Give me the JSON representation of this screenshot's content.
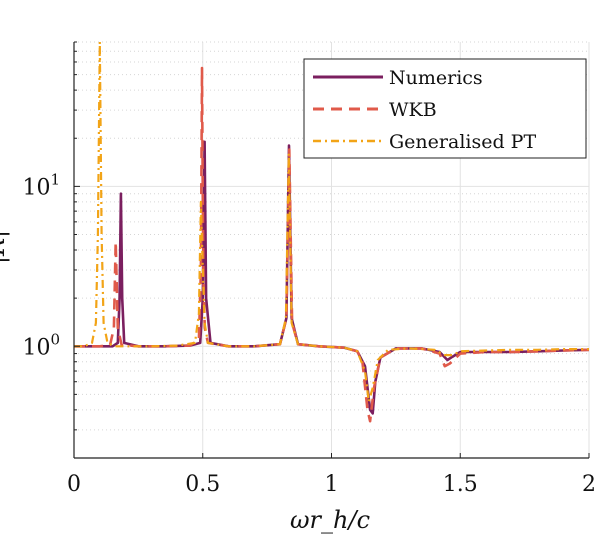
{
  "chart_data": {
    "type": "line",
    "title": "",
    "xlabel": "ωr_h/c",
    "ylabel": "|R|",
    "xscale": "linear",
    "yscale": "log",
    "xlim": [
      0,
      2
    ],
    "ylim": [
      0.2,
      80
    ],
    "grid": true,
    "legend_position": "top-right",
    "x_ticks": [
      {
        "value": 0,
        "label": "0"
      },
      {
        "value": 0.5,
        "label": "0.5"
      },
      {
        "value": 1,
        "label": "1"
      },
      {
        "value": 1.5,
        "label": "1.5"
      },
      {
        "value": 2,
        "label": "2"
      }
    ],
    "y_ticks": [
      {
        "value": 1,
        "base": "10",
        "exp": "0"
      },
      {
        "value": 10,
        "base": "10",
        "exp": "1"
      }
    ],
    "series": [
      {
        "name": "Numerics",
        "color": "#7b1f5f",
        "style": "solid",
        "x": [
          0.0,
          0.05,
          0.1,
          0.15,
          0.17,
          0.177,
          0.182,
          0.187,
          0.195,
          0.25,
          0.35,
          0.45,
          0.49,
          0.5,
          0.507,
          0.513,
          0.53,
          0.6,
          0.7,
          0.8,
          0.825,
          0.835,
          0.845,
          0.87,
          0.95,
          1.05,
          1.1,
          1.13,
          1.15,
          1.16,
          1.17,
          1.19,
          1.25,
          1.35,
          1.42,
          1.45,
          1.47,
          1.5,
          1.6,
          1.7,
          1.8,
          1.9,
          2.0
        ],
        "y": [
          1.0,
          1.0,
          1.0,
          1.0,
          1.05,
          2.0,
          9.0,
          2.0,
          1.05,
          1.0,
          1.0,
          1.01,
          1.05,
          2.0,
          19.0,
          2.0,
          1.05,
          1.0,
          1.0,
          1.03,
          1.5,
          18.0,
          1.5,
          1.03,
          1.0,
          0.98,
          0.93,
          0.75,
          0.4,
          0.38,
          0.6,
          0.85,
          0.97,
          0.97,
          0.92,
          0.82,
          0.86,
          0.92,
          0.92,
          0.92,
          0.93,
          0.94,
          0.95
        ]
      },
      {
        "name": "WKB",
        "color": "#e05a4a",
        "style": "dashed",
        "x": [
          0.0,
          0.05,
          0.1,
          0.14,
          0.155,
          0.162,
          0.17,
          0.185,
          0.25,
          0.35,
          0.45,
          0.485,
          0.493,
          0.497,
          0.5,
          0.503,
          0.508,
          0.52,
          0.6,
          0.7,
          0.8,
          0.825,
          0.836,
          0.847,
          0.87,
          0.95,
          1.05,
          1.1,
          1.12,
          1.14,
          1.15,
          1.165,
          1.19,
          1.25,
          1.35,
          1.42,
          1.44,
          1.46,
          1.5,
          1.6,
          1.7,
          1.8,
          1.9,
          2.0
        ],
        "y": [
          1.0,
          1.0,
          1.0,
          1.02,
          1.3,
          4.5,
          1.3,
          1.02,
          1.0,
          1.0,
          1.01,
          1.1,
          3.0,
          55.0,
          8.0,
          2.5,
          1.3,
          1.05,
          1.0,
          1.0,
          1.03,
          1.5,
          17.0,
          1.4,
          1.03,
          1.0,
          0.98,
          0.93,
          0.8,
          0.4,
          0.34,
          0.55,
          0.85,
          0.97,
          0.97,
          0.9,
          0.75,
          0.78,
          0.9,
          0.92,
          0.92,
          0.93,
          0.94,
          0.95
        ]
      },
      {
        "name": "Generalised PT",
        "color": "#f2a417",
        "style": "dashdot",
        "x": [
          0.0,
          0.04,
          0.07,
          0.085,
          0.093,
          0.1,
          0.107,
          0.115,
          0.13,
          0.16,
          0.2,
          0.3,
          0.4,
          0.47,
          0.485,
          0.493,
          0.5,
          0.507,
          0.52,
          0.6,
          0.7,
          0.8,
          0.823,
          0.834,
          0.845,
          0.87,
          0.95,
          1.05,
          1.1,
          1.13,
          1.145,
          1.16,
          1.18,
          1.22,
          1.3,
          1.4,
          1.44,
          1.47,
          1.5,
          1.6,
          1.7,
          1.8,
          1.9,
          2.0
        ],
        "y": [
          1.0,
          1.0,
          1.05,
          1.4,
          5.0,
          80.0,
          5.0,
          1.4,
          1.05,
          1.0,
          1.0,
          1.0,
          1.01,
          1.05,
          1.6,
          8.0,
          3.0,
          1.4,
          1.05,
          1.0,
          1.0,
          1.03,
          1.5,
          16.0,
          1.4,
          1.03,
          1.0,
          0.98,
          0.93,
          0.7,
          0.45,
          0.55,
          0.82,
          0.95,
          0.97,
          0.95,
          0.88,
          0.88,
          0.93,
          0.94,
          0.95,
          0.95,
          0.96,
          0.96
        ]
      }
    ]
  }
}
